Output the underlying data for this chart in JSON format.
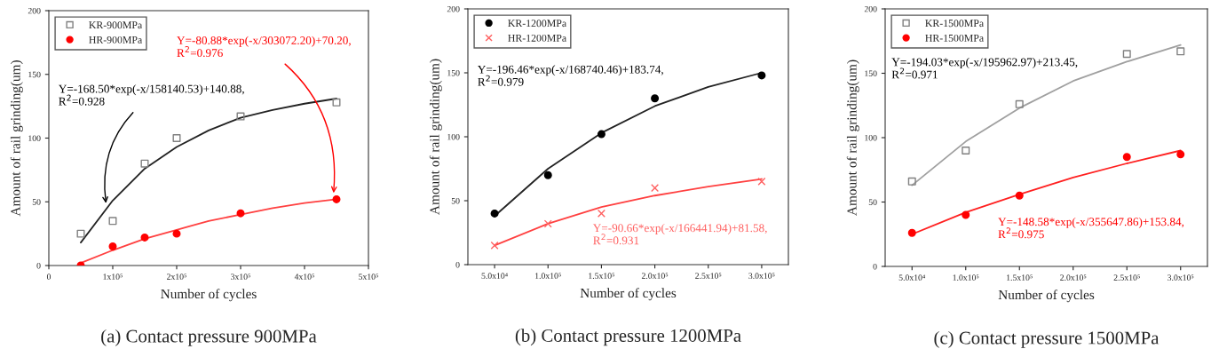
{
  "chart_data": [
    {
      "type": "scatter",
      "title": "(a) Contact pressure 900MPa",
      "xlabel": "Number of cycles",
      "ylabel": "Amount of rail grinding(um)",
      "xlim": [
        0,
        500000
      ],
      "xticks": [
        0,
        {
          "value": 100000,
          "label": "1x10⁵"
        },
        {
          "value": 200000,
          "label": "2x10⁵"
        },
        {
          "value": 300000,
          "label": "3x10⁵"
        },
        {
          "value": 400000,
          "label": "4x10⁵"
        },
        {
          "value": 500000,
          "label": "5x10⁵"
        }
      ],
      "ylim": [
        0,
        200
      ],
      "yticks": [
        0,
        50,
        100,
        150,
        200
      ],
      "legend": "top left",
      "grid": false,
      "series": [
        {
          "name": "KR-900MPa",
          "marker": "square",
          "color": "#808080",
          "x": [
            50000,
            100000,
            150000,
            200000,
            300000,
            450000
          ],
          "values": [
            25,
            35,
            80,
            100,
            117,
            128
          ]
        },
        {
          "name": "HR-900MPa",
          "marker": "circle",
          "color": "#ff0000",
          "x": [
            50000,
            100000,
            150000,
            200000,
            300000,
            450000
          ],
          "values": [
            0,
            15,
            22,
            25,
            41,
            52
          ]
        },
        {
          "type": "line",
          "marker": "none",
          "color": "#222222",
          "x": [
            50000,
            100000,
            150000,
            200000,
            250000,
            300000,
            350000,
            400000,
            450000
          ],
          "values": [
            18,
            51,
            76,
            93,
            106,
            116,
            122,
            127,
            131
          ]
        },
        {
          "type": "line",
          "marker": "none",
          "color": "#ff4040",
          "x": [
            50000,
            100000,
            150000,
            200000,
            250000,
            300000,
            350000,
            400000,
            450000
          ],
          "values": [
            2,
            12,
            21,
            28,
            35,
            40,
            45,
            49,
            52
          ]
        }
      ],
      "annotations": [
        {
          "text": "Y=-80.88*exp(-x/303072.20)+70.20,\nR$^{2}$=0.976",
          "x": 445000,
          "y": 55
        },
        {
          "text": "Y=-168.50*exp(-x/158140.53)+140.88,\nR$^{2}$=0.928",
          "x": 90000,
          "y": 47
        }
      ]
    },
    {
      "type": "scatter",
      "title": "(b) Contact pressure 1200MPa",
      "xlabel": "Number of cycles",
      "ylabel": "Amount of rail grinding(um)",
      "xlim": [
        25000,
        325000
      ],
      "xticks": [
        {
          "value": 50000,
          "label": "5.0x10⁴"
        },
        {
          "value": 100000,
          "label": "1.0x10⁵"
        },
        {
          "value": 150000,
          "label": "1.5x10⁵"
        },
        {
          "value": 200000,
          "label": "2.0x10⁵"
        },
        {
          "value": 250000,
          "label": "2.5x10⁵"
        },
        {
          "value": 300000,
          "label": "3.0x10⁵"
        }
      ],
      "ylim": [
        0,
        200
      ],
      "yticks": [
        0,
        50,
        100,
        150,
        200
      ],
      "legend": "top left",
      "grid": false,
      "series": [
        {
          "name": "KR-1200MPa",
          "marker": "circle",
          "color": "#000000",
          "x": [
            50000,
            100000,
            150000,
            200000,
            300000
          ],
          "values": [
            40,
            70,
            102,
            130,
            148
          ]
        },
        {
          "name": "HR-1200MPa",
          "marker": "cross",
          "color": "#ff6060",
          "x": [
            50000,
            100000,
            150000,
            200000,
            300000
          ],
          "values": [
            15,
            32,
            40,
            60,
            65
          ]
        },
        {
          "type": "line",
          "marker": "none",
          "color": "#222222",
          "x": [
            50000,
            100000,
            150000,
            200000,
            250000,
            300000
          ],
          "values": [
            38,
            75,
            103,
            124,
            139,
            150
          ]
        },
        {
          "type": "line",
          "marker": "none",
          "color": "#ff4040",
          "x": [
            50000,
            100000,
            150000,
            200000,
            250000,
            300000
          ],
          "values": [
            15,
            32,
            45,
            54,
            61,
            67
          ]
        }
      ],
      "annotations": [
        "Y=-196.46*exp(-x/168740.46)+183.74,\nR$^{2}$=0.979",
        "Y=-90.66*exp(-x/166441.94)+81.58,\nR$^{2}$=0.931"
      ]
    },
    {
      "type": "scatter",
      "title": "(c) Contact pressure 1500MPa",
      "xlabel": "Number of cycles",
      "ylabel": "Amount of rail grinding(um)",
      "xlim": [
        25000,
        325000
      ],
      "xticks": [
        {
          "value": 50000,
          "label": "5.0x10⁴"
        },
        {
          "value": 100000,
          "label": "1.0x10⁵"
        },
        {
          "value": 150000,
          "label": "1.5x10⁵"
        },
        {
          "value": 200000,
          "label": "2.0x10⁵"
        },
        {
          "value": 250000,
          "label": "2.5x10⁵"
        },
        {
          "value": 300000,
          "label": "3.0x10⁵"
        }
      ],
      "ylim": [
        0,
        200
      ],
      "yticks": [
        0,
        50,
        100,
        150,
        200
      ],
      "legend": "top left",
      "grid": false,
      "series": [
        {
          "name": "KR-1500MPa",
          "marker": "square",
          "color": "#808080",
          "x": [
            50000,
            100000,
            150000,
            250000,
            300000
          ],
          "values": [
            66,
            90,
            126,
            165,
            167
          ]
        },
        {
          "name": "HR-1500MPa",
          "marker": "circle",
          "color": "#ff0000",
          "x": [
            50000,
            100000,
            150000,
            250000,
            300000
          ],
          "values": [
            26,
            40,
            55,
            85,
            87
          ]
        },
        {
          "type": "line",
          "marker": "none",
          "color": "#a0a0a0",
          "x": [
            50000,
            100000,
            150000,
            200000,
            250000,
            300000
          ],
          "values": [
            63,
            97,
            123,
            144,
            159,
            172
          ]
        },
        {
          "type": "line",
          "marker": "none",
          "color": "#ff2020",
          "x": [
            50000,
            100000,
            150000,
            200000,
            250000,
            300000
          ],
          "values": [
            25,
            42,
            56,
            69,
            80,
            90
          ]
        }
      ],
      "annotations": [
        "Y=-194.03*exp(-x/195962.97)+213.45,\nR$^{2}$=0.971",
        "Y=-148.58*exp(-x/355647.86)+153.84,\nR$^{2}$=0.975"
      ]
    }
  ]
}
